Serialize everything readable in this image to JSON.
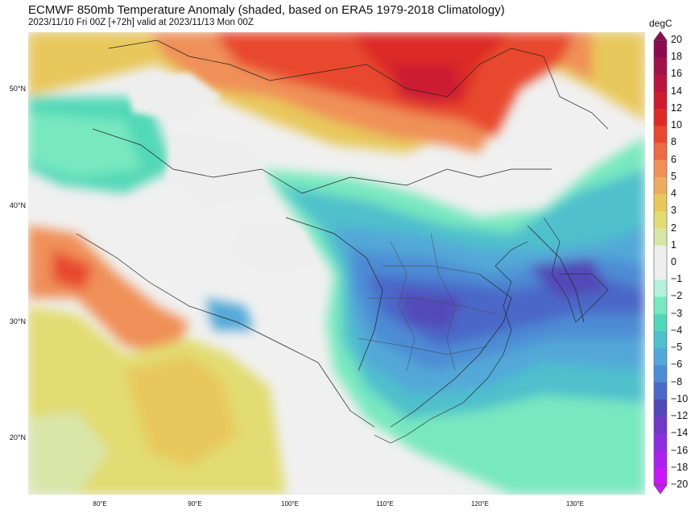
{
  "header": {
    "title": "ECMWF 850mb Temperature Anomaly (shaded, based on ERA5 1979-2018 Climatology)",
    "subtitle": "2023/11/10 Fri 00Z [+72h] valid at 2023/11/13 Mon 00Z"
  },
  "map": {
    "lat_labels": [
      "50°N",
      "40°N",
      "30°N",
      "20°N"
    ],
    "lon_labels": [
      "80°E",
      "90°E",
      "100°E",
      "110°E",
      "120°E",
      "130°E"
    ],
    "lat_range": [
      15,
      55
    ],
    "lon_range": [
      72.5,
      137.5
    ]
  },
  "colorbar": {
    "unit": "degC",
    "levels": [
      "20",
      "18",
      "16",
      "14",
      "12",
      "10",
      "8",
      "6",
      "5",
      "4",
      "3",
      "2",
      "1",
      "0",
      "−1",
      "−2",
      "−3",
      "−4",
      "−5",
      "−6",
      "−8",
      "−10",
      "−12",
      "−14",
      "−16",
      "−18",
      "−20"
    ],
    "colors": [
      "#8b0a50",
      "#a0124a",
      "#b81440",
      "#cc1a30",
      "#dd2a28",
      "#e8482e",
      "#ee6a44",
      "#f09058",
      "#eeac62",
      "#e8c85c",
      "#e2dc72",
      "#d8e6a8",
      "#eeeeee",
      "#eeeeee",
      "#b4f0dc",
      "#78e8c0",
      "#52d8b8",
      "#50c0cc",
      "#52a8d8",
      "#4e8cd4",
      "#4c68c8",
      "#5248b8",
      "#7038c8",
      "#8a2ee0",
      "#aa22ee",
      "#c818f8"
    ]
  }
}
